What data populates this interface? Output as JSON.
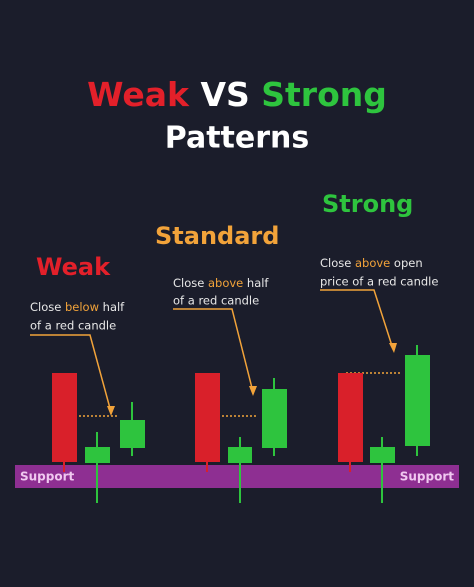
{
  "title": {
    "parts": [
      "Weak",
      "VS",
      "Strong"
    ],
    "line2": "Patterns"
  },
  "panels": [
    {
      "heading": "Weak",
      "lines": [
        [
          "Close ",
          "below",
          " half"
        ],
        [
          "of a red candle"
        ]
      ]
    },
    {
      "heading": "Standard",
      "lines": [
        [
          "Close ",
          "above",
          " half"
        ],
        [
          "of a red candle"
        ]
      ]
    },
    {
      "heading": "Strong",
      "lines": [
        [
          "Close ",
          "above",
          " open"
        ],
        [
          "price of a red candle"
        ]
      ]
    }
  ],
  "support": {
    "left": "Support",
    "right": "Support"
  }
}
